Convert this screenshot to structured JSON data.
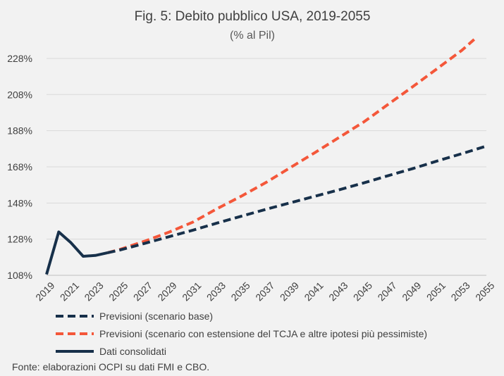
{
  "chart_data": {
    "type": "line",
    "title": "Fig. 5: Debito pubblico USA, 2019-2055",
    "subtitle": "(% al Pil)",
    "xlabel": "",
    "ylabel": "",
    "x_ticks": [
      "2019",
      "2021",
      "2023",
      "2025",
      "2027",
      "2029",
      "2031",
      "2033",
      "2035",
      "2037",
      "2039",
      "2041",
      "2043",
      "2045",
      "2047",
      "2049",
      "2051",
      "2053",
      "2055"
    ],
    "y_ticks": [
      "108%",
      "128%",
      "148%",
      "168%",
      "188%",
      "208%",
      "228%"
    ],
    "xlim": [
      2019,
      2055
    ],
    "ylim": [
      108,
      235
    ],
    "grid": "horizontal",
    "legend_position": "bottom",
    "series": [
      {
        "name": "Previsioni (scenario base)",
        "style": "dashed",
        "color": "#17304a",
        "x": [
          2024,
          2025,
          2027,
          2029,
          2031,
          2033,
          2035,
          2037,
          2039,
          2041,
          2043,
          2045,
          2047,
          2049,
          2051,
          2053,
          2055
        ],
        "values": [
          120.5,
          122.0,
          125.6,
          129.3,
          133.0,
          137.0,
          140.8,
          144.6,
          148.2,
          151.8,
          155.4,
          159.2,
          163.2,
          167.1,
          171.3,
          175.3,
          179.5
        ]
      },
      {
        "name": "Previsioni (scenario con estensione del TCJA e altre ipotesi più pessimiste)",
        "style": "dashed",
        "color": "#f4573a",
        "x": [
          2024,
          2025,
          2027,
          2029,
          2031,
          2033,
          2035,
          2037,
          2039,
          2041,
          2043,
          2045,
          2047,
          2049,
          2051,
          2053,
          2054
        ],
        "values": [
          120.5,
          122.3,
          126.8,
          131.8,
          137.5,
          145.0,
          152.0,
          159.5,
          167.8,
          176.0,
          184.5,
          193.0,
          202.8,
          212.5,
          222.5,
          232.5,
          238.5
        ]
      },
      {
        "name": "Dati consolidati",
        "style": "solid",
        "color": "#17304a",
        "x": [
          2019,
          2020,
          2021,
          2022,
          2023,
          2024
        ],
        "values": [
          108.5,
          132.0,
          126.0,
          118.5,
          119.0,
          120.5
        ]
      }
    ]
  },
  "source_note": "Fonte: elaborazioni OCPI su dati FMI e CBO."
}
